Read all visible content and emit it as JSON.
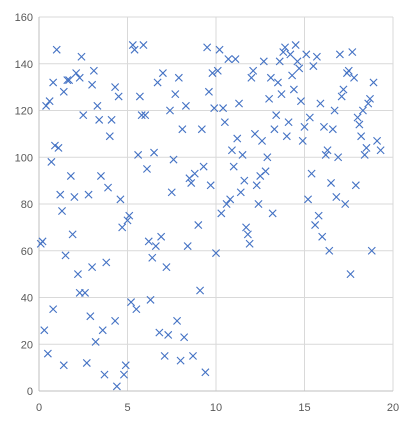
{
  "chart_data": {
    "type": "scatter",
    "title": "",
    "xlabel": "",
    "ylabel": "",
    "xlim": [
      0,
      20
    ],
    "ylim": [
      0,
      160
    ],
    "xticks": [
      0,
      5,
      10,
      15,
      20
    ],
    "yticks": [
      0,
      20,
      40,
      60,
      80,
      100,
      120,
      140,
      160
    ],
    "grid": true,
    "legend": "none",
    "marker": "x",
    "color": "#4472c4",
    "series": [
      {
        "points": [
          [
            0.1,
            63
          ],
          [
            0.2,
            64
          ],
          [
            0.3,
            26
          ],
          [
            0.4,
            122
          ],
          [
            0.5,
            16
          ],
          [
            0.6,
            124
          ],
          [
            0.7,
            98
          ],
          [
            0.8,
            132
          ],
          [
            0.8,
            35
          ],
          [
            0.9,
            105
          ],
          [
            1.0,
            146
          ],
          [
            1.1,
            104
          ],
          [
            1.2,
            84
          ],
          [
            1.3,
            77
          ],
          [
            1.4,
            128
          ],
          [
            1.4,
            11
          ],
          [
            1.5,
            58
          ],
          [
            1.6,
            133
          ],
          [
            1.7,
            133
          ],
          [
            1.8,
            92
          ],
          [
            1.9,
            67
          ],
          [
            2.0,
            83
          ],
          [
            2.1,
            136
          ],
          [
            2.2,
            50
          ],
          [
            2.3,
            134
          ],
          [
            2.3,
            42
          ],
          [
            2.4,
            143
          ],
          [
            2.5,
            118
          ],
          [
            2.6,
            42
          ],
          [
            2.7,
            12
          ],
          [
            2.8,
            84
          ],
          [
            2.9,
            32
          ],
          [
            3.0,
            53
          ],
          [
            3.0,
            131
          ],
          [
            3.1,
            137
          ],
          [
            3.2,
            21
          ],
          [
            3.3,
            122
          ],
          [
            3.4,
            116
          ],
          [
            3.5,
            92
          ],
          [
            3.6,
            26
          ],
          [
            3.7,
            7
          ],
          [
            3.8,
            55
          ],
          [
            3.9,
            87
          ],
          [
            4.0,
            109
          ],
          [
            4.1,
            116
          ],
          [
            4.3,
            30
          ],
          [
            4.3,
            130
          ],
          [
            4.4,
            2
          ],
          [
            4.5,
            126
          ],
          [
            4.6,
            82
          ],
          [
            4.7,
            70
          ],
          [
            4.8,
            7
          ],
          [
            4.9,
            11
          ],
          [
            5.0,
            73
          ],
          [
            5.1,
            75
          ],
          [
            5.2,
            38
          ],
          [
            5.3,
            148
          ],
          [
            5.4,
            146
          ],
          [
            5.5,
            35
          ],
          [
            5.6,
            101
          ],
          [
            5.7,
            126
          ],
          [
            5.9,
            148
          ],
          [
            5.8,
            118
          ],
          [
            6.0,
            118
          ],
          [
            6.1,
            95
          ],
          [
            6.2,
            64
          ],
          [
            6.3,
            39
          ],
          [
            6.4,
            57
          ],
          [
            6.5,
            102
          ],
          [
            6.6,
            62
          ],
          [
            6.7,
            132
          ],
          [
            6.8,
            25
          ],
          [
            6.9,
            66
          ],
          [
            7.0,
            136
          ],
          [
            7.1,
            15
          ],
          [
            7.2,
            53
          ],
          [
            7.3,
            24
          ],
          [
            7.4,
            120
          ],
          [
            7.5,
            85
          ],
          [
            7.6,
            99
          ],
          [
            7.7,
            127
          ],
          [
            7.8,
            30
          ],
          [
            7.9,
            134
          ],
          [
            8.0,
            13
          ],
          [
            8.1,
            112
          ],
          [
            8.2,
            23
          ],
          [
            8.3,
            122
          ],
          [
            8.4,
            62
          ],
          [
            8.5,
            91
          ],
          [
            8.6,
            89
          ],
          [
            8.7,
            15
          ],
          [
            8.8,
            93
          ],
          [
            9.0,
            71
          ],
          [
            9.1,
            43
          ],
          [
            9.2,
            112
          ],
          [
            9.3,
            96
          ],
          [
            9.4,
            8
          ],
          [
            9.5,
            147
          ],
          [
            9.6,
            128
          ],
          [
            9.7,
            88
          ],
          [
            9.8,
            136
          ],
          [
            9.9,
            121
          ],
          [
            10.0,
            59
          ],
          [
            10.1,
            137
          ],
          [
            10.2,
            146
          ],
          [
            10.3,
            76
          ],
          [
            10.4,
            121
          ],
          [
            10.5,
            115
          ],
          [
            10.6,
            80
          ],
          [
            10.7,
            142
          ],
          [
            10.8,
            82
          ],
          [
            10.9,
            103
          ],
          [
            11.0,
            96
          ],
          [
            11.1,
            142
          ],
          [
            11.2,
            108
          ],
          [
            11.3,
            123
          ],
          [
            11.4,
            85
          ],
          [
            11.5,
            101
          ],
          [
            11.6,
            90
          ],
          [
            11.7,
            70
          ],
          [
            11.8,
            67
          ],
          [
            11.9,
            63
          ],
          [
            12.0,
            134
          ],
          [
            12.1,
            137
          ],
          [
            12.2,
            110
          ],
          [
            12.3,
            88
          ],
          [
            12.4,
            80
          ],
          [
            12.5,
            92
          ],
          [
            12.6,
            107
          ],
          [
            12.7,
            141
          ],
          [
            12.8,
            94
          ],
          [
            12.9,
            100
          ],
          [
            13.0,
            125
          ],
          [
            13.1,
            134
          ],
          [
            13.2,
            76
          ],
          [
            13.3,
            112
          ],
          [
            13.4,
            118
          ],
          [
            13.5,
            132
          ],
          [
            13.6,
            141
          ],
          [
            13.7,
            127
          ],
          [
            13.8,
            145
          ],
          [
            13.9,
            147
          ],
          [
            14.0,
            109
          ],
          [
            14.1,
            115
          ],
          [
            14.2,
            144
          ],
          [
            14.3,
            135
          ],
          [
            14.4,
            129
          ],
          [
            14.5,
            148
          ],
          [
            14.6,
            141
          ],
          [
            14.7,
            138
          ],
          [
            14.8,
            124
          ],
          [
            14.9,
            107
          ],
          [
            15.0,
            113
          ],
          [
            15.1,
            144
          ],
          [
            15.2,
            82
          ],
          [
            15.3,
            117
          ],
          [
            15.4,
            93
          ],
          [
            15.5,
            139
          ],
          [
            15.6,
            71
          ],
          [
            15.7,
            143
          ],
          [
            15.8,
            75
          ],
          [
            15.9,
            123
          ],
          [
            16.0,
            66
          ],
          [
            16.1,
            113
          ],
          [
            16.2,
            101
          ],
          [
            16.3,
            103
          ],
          [
            16.4,
            60
          ],
          [
            16.5,
            89
          ],
          [
            16.6,
            112
          ],
          [
            16.7,
            120
          ],
          [
            16.8,
            83
          ],
          [
            16.9,
            100
          ],
          [
            17.0,
            144
          ],
          [
            17.1,
            126
          ],
          [
            17.2,
            129
          ],
          [
            17.3,
            80
          ],
          [
            17.4,
            136
          ],
          [
            17.5,
            137
          ],
          [
            17.6,
            50
          ],
          [
            17.7,
            145
          ],
          [
            17.8,
            134
          ],
          [
            17.9,
            88
          ],
          [
            18.0,
            117
          ],
          [
            18.1,
            114
          ],
          [
            18.2,
            109
          ],
          [
            18.3,
            120
          ],
          [
            18.4,
            101
          ],
          [
            18.5,
            104
          ],
          [
            18.6,
            123
          ],
          [
            18.7,
            125
          ],
          [
            18.8,
            60
          ],
          [
            18.9,
            132
          ],
          [
            19.1,
            107
          ],
          [
            19.3,
            103
          ]
        ]
      }
    ]
  }
}
